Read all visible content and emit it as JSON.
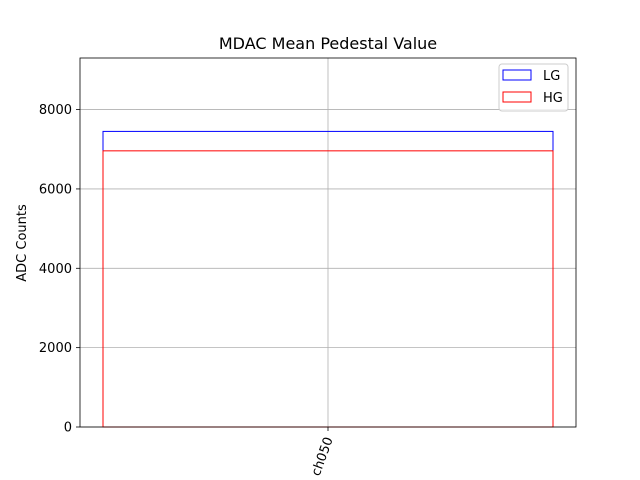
{
  "chart_data": {
    "type": "bar",
    "title": "MDAC Mean Pedestal Value",
    "xlabel": "",
    "ylabel": "ADC Counts",
    "categories": [
      "ch050"
    ],
    "series": [
      {
        "name": "LG",
        "values": [
          7450
        ],
        "color": "#0000ff"
      },
      {
        "name": "HG",
        "values": [
          6960
        ],
        "color": "#ff0000"
      }
    ],
    "ylim": [
      0,
      9300
    ],
    "yticks": [
      0,
      2000,
      4000,
      6000,
      8000
    ],
    "ytick_labels": [
      "0",
      "2000",
      "4000",
      "6000",
      "8000"
    ],
    "grid": true,
    "legend_position": "top-right",
    "bar_fill": "none",
    "xtick_rotation_deg": -70
  }
}
